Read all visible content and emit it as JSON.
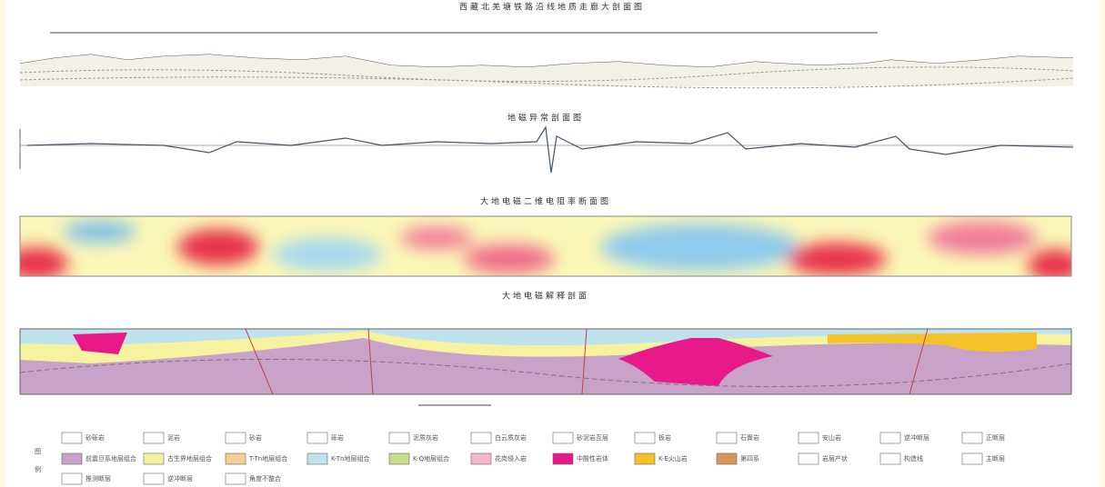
{
  "header": {
    "title": "西藏北羌塘铁路沿线地质走廊大剖面图"
  },
  "panels": [
    {
      "title": "地磁异常剖面图"
    },
    {
      "title": "大地电磁二维电阻率断面图"
    },
    {
      "title": "大地电磁解释剖面"
    }
  ],
  "legend": {
    "heading": [
      "图",
      "例"
    ],
    "row1": [
      "砂砾岩",
      "泥岩",
      "砂岩",
      "砾岩",
      "泥质灰岩",
      "白云质灰岩",
      "砂泥岩互层",
      "板岩",
      "石膏岩",
      "安山岩",
      "逆冲断层",
      "正断层"
    ],
    "row2": [
      "前震旦系地层组合",
      "古生界地层组合",
      "T-Tn地层组合",
      "K-Tn地层组合",
      "K-Q地层组合",
      "花岗侵入岩",
      "中酸性岩体",
      "K-E火山岩",
      "第四系",
      "岩层产状",
      "构造线",
      "主断层"
    ],
    "row3": [
      "推测断层",
      "逆冲断层",
      "角度不整合"
    ]
  }
}
